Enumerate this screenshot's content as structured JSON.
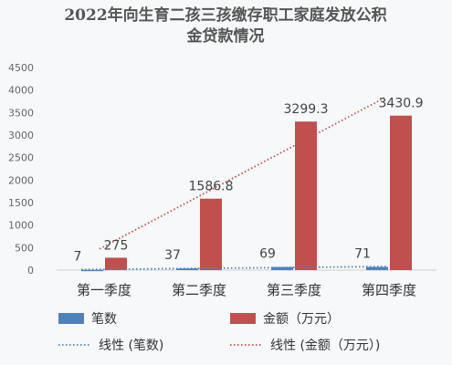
{
  "chart_data": {
    "type": "bar",
    "title": "2022年向生育二孩三孩缴存职工家庭发放公积金贷款情况",
    "title_lines": [
      "2022年向生育二孩三孩缴存职工家庭发放公积",
      "金贷款情况"
    ],
    "categories": [
      "第一季度",
      "第二季度",
      "第三季度",
      "第四季度"
    ],
    "ylim": [
      0,
      4500
    ],
    "yticks": [
      0,
      500,
      1000,
      1500,
      2000,
      2500,
      3000,
      3500,
      4000,
      4500
    ],
    "series": [
      {
        "name": "笔数",
        "values": [
          7,
          37,
          69,
          71
        ],
        "labels": [
          "7",
          "37",
          "69",
          "71"
        ],
        "color": "#4f81bd"
      },
      {
        "name": "金额（万元）",
        "values": [
          275,
          1586.8,
          3299.3,
          3430.9
        ],
        "labels": [
          "275",
          "1586.8",
          "3299.3",
          "3430.9"
        ],
        "color": "#c0504d"
      }
    ],
    "trendlines": [
      {
        "name": "线性 (笔数)",
        "series": 0,
        "color": "#4f81bd",
        "style": "dotted"
      },
      {
        "name": "线性 (金额（万元）)",
        "series": 1,
        "color": "#c0504d",
        "style": "dotted"
      }
    ],
    "legend_position": "bottom",
    "grid": false
  }
}
